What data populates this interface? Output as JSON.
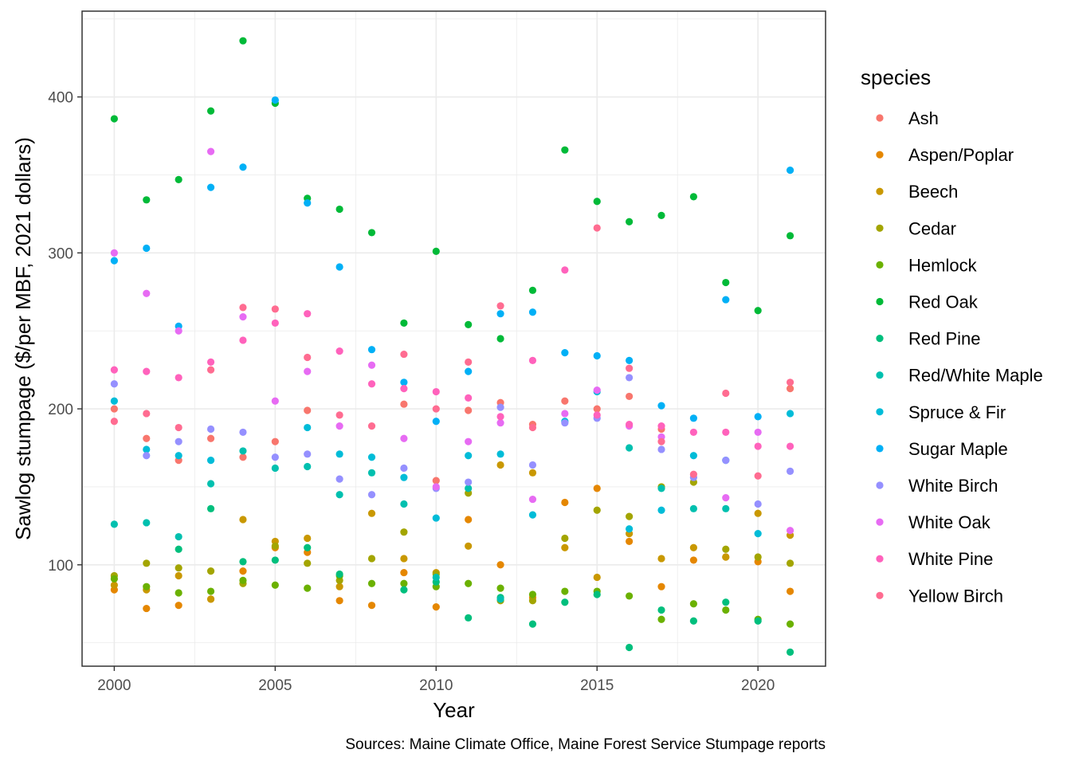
{
  "chart_data": {
    "type": "scatter",
    "xlabel": "Year",
    "ylabel": "Sawlog stumpage ($/per MBF, 2021 dollars)",
    "caption": "Sources: Maine Climate Office, Maine Forest Service Stumpage reports",
    "legend_title": "species",
    "legend_position": "right",
    "grid": true,
    "xlim": [
      1999,
      2022.1
    ],
    "ylim": [
      35,
      455
    ],
    "x_ticks": [
      2000,
      2005,
      2010,
      2015,
      2020
    ],
    "y_ticks": [
      100,
      200,
      300,
      400
    ],
    "x": [
      2000,
      2001,
      2002,
      2003,
      2004,
      2005,
      2006,
      2007,
      2008,
      2009,
      2010,
      2011,
      2012,
      2013,
      2014,
      2015,
      2016,
      2017,
      2018,
      2019,
      2020,
      2021
    ],
    "series": [
      {
        "name": "Ash",
        "color": "#F8766D",
        "values": [
          200,
          181,
          167,
          181,
          169,
          179,
          199,
          null,
          null,
          203,
          154,
          199,
          204,
          190,
          205,
          200,
          208,
          187,
          null,
          null,
          null,
          213
        ]
      },
      {
        "name": "Aspen/Poplar",
        "color": "#E58700",
        "values": [
          84,
          72,
          74,
          78,
          96,
          111,
          108,
          77,
          74,
          95,
          73,
          129,
          100,
          79,
          140,
          149,
          115,
          86,
          103,
          105,
          102,
          83
        ]
      },
      {
        "name": "Beech",
        "color": "#C99800",
        "values": [
          87,
          84,
          93,
          78,
          129,
          115,
          117,
          86,
          133,
          104,
          95,
          112,
          164,
          159,
          111,
          92,
          120,
          104,
          111,
          105,
          133,
          119
        ]
      },
      {
        "name": "Cedar",
        "color": "#A3A500",
        "values": [
          93,
          101,
          98,
          96,
          88,
          112,
          101,
          90,
          104,
          121,
          94,
          146,
          77,
          77,
          117,
          135,
          131,
          150,
          153,
          110,
          105,
          101
        ]
      },
      {
        "name": "Hemlock",
        "color": "#6BB100",
        "values": [
          91,
          86,
          82,
          83,
          90,
          87,
          85,
          93,
          88,
          88,
          86,
          88,
          85,
          81,
          83,
          83,
          80,
          65,
          75,
          71,
          65,
          62
        ]
      },
      {
        "name": "Red Oak",
        "color": "#00BA38",
        "values": [
          386,
          334,
          347,
          391,
          436,
          396,
          335,
          328,
          313,
          255,
          301,
          254,
          245,
          276,
          366,
          333,
          320,
          324,
          336,
          281,
          263,
          311
        ]
      },
      {
        "name": "Red Pine",
        "color": "#00BF7D",
        "values": [
          null,
          null,
          110,
          136,
          102,
          103,
          111,
          94,
          null,
          84,
          89,
          66,
          79,
          62,
          76,
          81,
          47,
          71,
          64,
          76,
          64,
          44
        ]
      },
      {
        "name": "Red/White Maple",
        "color": "#00C0AF",
        "values": [
          126,
          127,
          118,
          152,
          173,
          162,
          163,
          145,
          159,
          139,
          92,
          149,
          78,
          null,
          null,
          null,
          175,
          149,
          136,
          136,
          null,
          null
        ]
      },
      {
        "name": "Spruce & Fir",
        "color": "#00BCD8",
        "values": [
          205,
          174,
          170,
          167,
          null,
          null,
          188,
          171,
          169,
          156,
          130,
          170,
          171,
          132,
          192,
          211,
          123,
          135,
          170,
          167,
          120,
          197
        ]
      },
      {
        "name": "Sugar Maple",
        "color": "#00B0F6",
        "values": [
          295,
          303,
          253,
          342,
          355,
          398,
          332,
          291,
          238,
          217,
          192,
          224,
          261,
          262,
          236,
          234,
          231,
          202,
          194,
          270,
          195,
          353
        ]
      },
      {
        "name": "White Birch",
        "color": "#9590FF",
        "values": [
          216,
          170,
          179,
          187,
          185,
          169,
          171,
          155,
          145,
          162,
          149,
          153,
          201,
          164,
          191,
          194,
          220,
          174,
          156,
          167,
          139,
          160
        ]
      },
      {
        "name": "White Oak",
        "color": "#E76BF3",
        "values": [
          300,
          274,
          250,
          365,
          259,
          205,
          224,
          189,
          228,
          181,
          150,
          179,
          191,
          142,
          197,
          212,
          189,
          182,
          null,
          143,
          185,
          122
        ]
      },
      {
        "name": "White Pine",
        "color": "#FF62BC",
        "values": [
          225,
          224,
          220,
          230,
          244,
          255,
          261,
          237,
          216,
          213,
          211,
          207,
          195,
          231,
          289,
          196,
          190,
          189,
          185,
          185,
          176,
          176
        ]
      },
      {
        "name": "Yellow Birch",
        "color": "#FF6C91",
        "values": [
          192,
          197,
          188,
          225,
          265,
          264,
          233,
          196,
          189,
          235,
          200,
          230,
          266,
          188,
          null,
          316,
          226,
          179,
          158,
          210,
          157,
          217
        ]
      }
    ]
  }
}
